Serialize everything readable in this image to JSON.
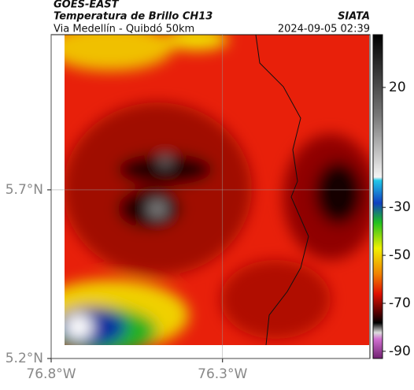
{
  "header": {
    "satellite": "GOES-EAST",
    "product": "Temperatura de Brillo CH13",
    "source": "SIATA",
    "route": "Via Medellín - Quibdó 50km",
    "datetime": "2024-09-05 02:39"
  },
  "chart_data": {
    "type": "map",
    "xlim": [
      -76.8,
      -75.87
    ],
    "ylim": [
      5.2,
      6.16
    ],
    "xticks": [
      {
        "value": -76.8,
        "label": "76.8°W"
      },
      {
        "value": -76.3,
        "label": "76.3°W"
      }
    ],
    "yticks": [
      {
        "value": 5.7,
        "label": "5.7°N"
      },
      {
        "value": 5.2,
        "label": "5.2°N"
      }
    ],
    "grid": true,
    "colorbar": {
      "lim": [
        -93,
        42
      ],
      "ticks": [
        20,
        -30,
        -50,
        -70,
        -90
      ]
    }
  }
}
